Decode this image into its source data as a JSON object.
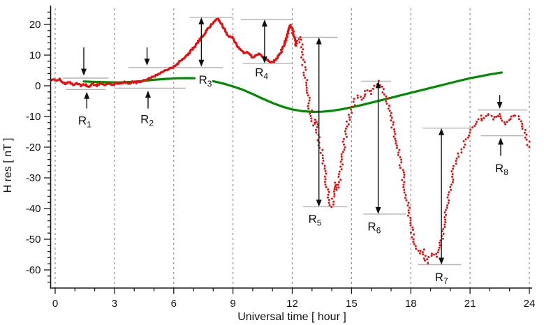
{
  "chart_data": {
    "type": "scatter",
    "title": "",
    "xlabel": "Universal time  [ hour ]",
    "ylabel": "H res  [ nT ]",
    "xlim": [
      -0.32,
      24.15
    ],
    "ylim": [
      -66,
      26
    ],
    "x_ticks": [
      0,
      3,
      6,
      9,
      12,
      15,
      18,
      21,
      24
    ],
    "y_ticks": [
      20,
      10,
      0,
      -10,
      -20,
      -30,
      -40,
      -50,
      -60
    ],
    "x_minor_step": 1,
    "y_minor_step": 2,
    "grid": "vertical dashed lines at major x ticks",
    "legend": "none",
    "colors": {
      "observed": "#ec0c0c",
      "baseline": "#008c00",
      "reference_line": "#b4b4b4",
      "arrow": "#101010",
      "gridline": "#8f8f8f"
    },
    "series": [
      {
        "name": "observed-H-residual",
        "style": "scatter-dots",
        "color": "#ec0c0c",
        "dense_until": 12.15,
        "points": [
          [
            -0.2,
            2.0
          ],
          [
            0.0,
            1.8
          ],
          [
            0.2,
            2.1
          ],
          [
            0.35,
            1.2
          ],
          [
            0.5,
            0.6
          ],
          [
            0.7,
            1.2
          ],
          [
            0.9,
            0.4
          ],
          [
            1.1,
            1.0
          ],
          [
            1.3,
            -0.1
          ],
          [
            1.5,
            0.5
          ],
          [
            1.7,
            -0.3
          ],
          [
            1.9,
            0.6
          ],
          [
            2.1,
            0.1
          ],
          [
            2.3,
            0.9
          ],
          [
            2.5,
            0.3
          ],
          [
            2.7,
            0.8
          ],
          [
            2.9,
            0.4
          ],
          [
            3.1,
            1.0
          ],
          [
            3.3,
            0.6
          ],
          [
            3.5,
            1.1
          ],
          [
            3.7,
            0.8
          ],
          [
            3.9,
            1.2
          ],
          [
            4.1,
            1.0
          ],
          [
            4.3,
            1.4
          ],
          [
            4.5,
            1.8
          ],
          [
            4.7,
            2.2
          ],
          [
            4.9,
            2.8
          ],
          [
            5.1,
            3.4
          ],
          [
            5.3,
            4.0
          ],
          [
            5.5,
            4.6
          ],
          [
            5.7,
            5.2
          ],
          [
            5.9,
            5.8
          ],
          [
            6.1,
            6.9
          ],
          [
            6.3,
            7.8
          ],
          [
            6.5,
            9.0
          ],
          [
            6.7,
            10.2
          ],
          [
            6.9,
            11.6
          ],
          [
            7.1,
            13.2
          ],
          [
            7.3,
            14.8
          ],
          [
            7.5,
            16.4
          ],
          [
            7.7,
            18.2
          ],
          [
            7.9,
            20.0
          ],
          [
            8.1,
            21.4
          ],
          [
            8.2,
            21.9
          ],
          [
            8.35,
            21.2
          ],
          [
            8.5,
            19.3
          ],
          [
            8.65,
            17.2
          ],
          [
            8.8,
            16.2
          ],
          [
            8.95,
            15.8
          ],
          [
            9.1,
            14.3
          ],
          [
            9.25,
            12.8
          ],
          [
            9.4,
            11.6
          ],
          [
            9.55,
            10.6
          ],
          [
            9.7,
            10.9
          ],
          [
            9.85,
            10.0
          ],
          [
            10.0,
            9.2
          ],
          [
            10.15,
            9.8
          ],
          [
            10.3,
            10.4
          ],
          [
            10.45,
            9.6
          ],
          [
            10.6,
            8.9
          ],
          [
            10.75,
            8.3
          ],
          [
            10.9,
            7.6
          ],
          [
            11.05,
            7.9
          ],
          [
            11.2,
            8.8
          ],
          [
            11.35,
            10.0
          ],
          [
            11.5,
            12.0
          ],
          [
            11.65,
            14.5
          ],
          [
            11.8,
            17.5
          ],
          [
            11.9,
            19.8
          ],
          [
            12.0,
            18.5
          ],
          [
            12.1,
            15.5
          ],
          [
            12.2,
            13.0
          ],
          [
            12.3,
            14.5
          ],
          [
            12.4,
            15.8
          ],
          [
            12.5,
            11.0
          ],
          [
            12.6,
            6.0
          ],
          [
            12.7,
            1.0
          ],
          [
            12.8,
            -4.0
          ],
          [
            12.95,
            -9.0
          ],
          [
            13.1,
            -13.0
          ],
          [
            13.2,
            -11.0
          ],
          [
            13.3,
            -16.0
          ],
          [
            13.45,
            -21.0
          ],
          [
            13.6,
            -27.0
          ],
          [
            13.75,
            -33.0
          ],
          [
            13.9,
            -38.0
          ],
          [
            14.0,
            -39.5
          ],
          [
            14.1,
            -36.0
          ],
          [
            14.2,
            -31.5
          ],
          [
            14.3,
            -34.0
          ],
          [
            14.45,
            -28.0
          ],
          [
            14.6,
            -20.0
          ],
          [
            14.75,
            -14.0
          ],
          [
            14.9,
            -9.5
          ],
          [
            15.05,
            -7.0
          ],
          [
            15.2,
            -4.5
          ],
          [
            15.35,
            -3.0
          ],
          [
            15.5,
            -4.5
          ],
          [
            15.65,
            -2.5
          ],
          [
            15.8,
            -1.5
          ],
          [
            15.95,
            -2.5
          ],
          [
            16.1,
            -1.0
          ],
          [
            16.25,
            0.8
          ],
          [
            16.35,
            1.5
          ],
          [
            16.5,
            -0.5
          ],
          [
            16.65,
            -2.0
          ],
          [
            16.8,
            -5.0
          ],
          [
            16.95,
            -9.0
          ],
          [
            17.1,
            -13.5
          ],
          [
            17.25,
            -18.0
          ],
          [
            17.4,
            -22.5
          ],
          [
            17.55,
            -27.5
          ],
          [
            17.7,
            -33.0
          ],
          [
            17.85,
            -39.0
          ],
          [
            18.0,
            -45.5
          ],
          [
            18.15,
            -50.0
          ],
          [
            18.3,
            -53.0
          ],
          [
            18.45,
            -54.5
          ],
          [
            18.6,
            -53.5
          ],
          [
            18.7,
            -55.5
          ],
          [
            18.8,
            -57.5
          ],
          [
            18.95,
            -56.0
          ],
          [
            19.1,
            -54.5
          ],
          [
            19.25,
            -55.5
          ],
          [
            19.4,
            -53.5
          ],
          [
            19.55,
            -50.5
          ],
          [
            19.7,
            -46.0
          ],
          [
            19.85,
            -39.0
          ],
          [
            20.0,
            -33.0
          ],
          [
            20.15,
            -28.0
          ],
          [
            20.3,
            -24.5
          ],
          [
            20.5,
            -21.5
          ],
          [
            20.7,
            -19.0
          ],
          [
            20.9,
            -16.0
          ],
          [
            21.1,
            -13.5
          ],
          [
            21.3,
            -11.5
          ],
          [
            21.5,
            -10.0
          ],
          [
            21.65,
            -11.5
          ],
          [
            21.8,
            -9.8
          ],
          [
            22.0,
            -9.0
          ],
          [
            22.15,
            -10.8
          ],
          [
            22.3,
            -9.6
          ],
          [
            22.5,
            -9.2
          ],
          [
            22.65,
            -11.2
          ],
          [
            22.8,
            -12.6
          ],
          [
            22.95,
            -11.0
          ],
          [
            23.1,
            -10.2
          ],
          [
            23.3,
            -9.4
          ],
          [
            23.45,
            -10.0
          ],
          [
            23.6,
            -12.5
          ],
          [
            23.75,
            -14.5
          ],
          [
            23.9,
            -17.5
          ],
          [
            24.0,
            -20.0
          ]
        ]
      },
      {
        "name": "quiet-day-baseline",
        "style": "line",
        "color": "#008c00",
        "segments": [
          [
            [
              1.45,
              1.4
            ],
            [
              2.0,
              1.25
            ],
            [
              2.6,
              1.15
            ],
            [
              3.2,
              1.1
            ],
            [
              3.8,
              1.25
            ],
            [
              4.4,
              1.55
            ],
            [
              5.0,
              1.95
            ],
            [
              5.6,
              2.25
            ],
            [
              6.2,
              2.45
            ],
            [
              6.7,
              2.5
            ],
            [
              7.05,
              2.45
            ]
          ],
          [
            [
              8.0,
              1.5
            ],
            [
              8.5,
              0.75
            ],
            [
              9.0,
              -0.2
            ],
            [
              9.5,
              -1.3
            ],
            [
              10.0,
              -2.7
            ],
            [
              10.5,
              -4.2
            ],
            [
              11.0,
              -5.6
            ],
            [
              11.5,
              -6.8
            ],
            [
              12.0,
              -7.7
            ],
            [
              12.5,
              -8.25
            ],
            [
              13.0,
              -8.5
            ],
            [
              13.5,
              -8.45
            ],
            [
              14.0,
              -8.15
            ],
            [
              14.5,
              -7.65
            ],
            [
              15.0,
              -7.0
            ],
            [
              15.5,
              -6.3
            ],
            [
              16.0,
              -5.5
            ],
            [
              16.5,
              -4.7
            ],
            [
              17.0,
              -3.9
            ],
            [
              17.5,
              -3.1
            ],
            [
              18.0,
              -2.3
            ],
            [
              18.5,
              -1.5
            ],
            [
              19.0,
              -0.7
            ],
            [
              19.5,
              0.1
            ],
            [
              20.0,
              0.9
            ],
            [
              20.5,
              1.7
            ],
            [
              21.0,
              2.45
            ],
            [
              21.5,
              3.1
            ],
            [
              22.0,
              3.7
            ],
            [
              22.6,
              4.35
            ]
          ]
        ]
      }
    ],
    "annotations": [
      {
        "id": "R1",
        "text": "R",
        "sub": "1",
        "label_x": 1.5,
        "label_y": -11.5,
        "ref_lines": [
          {
            "y": 2.5,
            "x1": 0.4,
            "x2": 2.7
          },
          {
            "y": -1.2,
            "x1": 0.55,
            "x2": 2.55
          }
        ],
        "arrows": [
          {
            "x": 1.45,
            "y_from": 12.5,
            "y_to": 3.3,
            "heads": "to"
          },
          {
            "x": 1.6,
            "y_from": -7.4,
            "y_to": -2.0,
            "heads": "to"
          }
        ]
      },
      {
        "id": "R2",
        "text": "R",
        "sub": "2",
        "label_x": 4.65,
        "label_y": -11.0,
        "ref_lines": [
          {
            "y": 5.9,
            "x1": 3.7,
            "x2": 8.5
          },
          {
            "y": -0.8,
            "x1": 3.05,
            "x2": 6.6
          }
        ],
        "arrows": [
          {
            "x": 4.65,
            "y_from": 12.5,
            "y_to": 6.6,
            "heads": "to"
          },
          {
            "x": 4.7,
            "y_from": -7.4,
            "y_to": -1.6,
            "heads": "to"
          }
        ]
      },
      {
        "id": "R3",
        "text": "R",
        "sub": "3",
        "label_x": 7.6,
        "label_y": 1.8,
        "ref_lines": [
          {
            "y": 22.3,
            "x1": 6.8,
            "x2": 9.0
          }
        ],
        "arrows": [
          {
            "x": 7.4,
            "y_from": 22.3,
            "y_to": 6.2,
            "heads": "both"
          }
        ]
      },
      {
        "id": "R4",
        "text": "R",
        "sub": "4",
        "label_x": 10.45,
        "label_y": 4.2,
        "ref_lines": [
          {
            "y": 21.6,
            "x1": 9.4,
            "x2": 12.05
          },
          {
            "y": 7.3,
            "x1": 9.5,
            "x2": 12.0
          }
        ],
        "arrows": [
          {
            "x": 10.6,
            "y_from": 21.6,
            "y_to": 7.3,
            "heads": "both"
          }
        ]
      },
      {
        "id": "R5",
        "text": "R",
        "sub": "5",
        "label_x": 13.15,
        "label_y": -43.5,
        "ref_lines": [
          {
            "y": 15.8,
            "x1": 12.15,
            "x2": 14.3
          },
          {
            "y": -39.4,
            "x1": 12.55,
            "x2": 14.8
          }
        ],
        "arrows": [
          {
            "x": 13.35,
            "y_from": 15.8,
            "y_to": -39.4,
            "heads": "both"
          }
        ]
      },
      {
        "id": "R6",
        "text": "R",
        "sub": "6",
        "label_x": 16.15,
        "label_y": -46.0,
        "ref_lines": [
          {
            "y": 1.5,
            "x1": 15.5,
            "x2": 17.0
          },
          {
            "y": -41.8,
            "x1": 15.6,
            "x2": 17.75
          }
        ],
        "arrows": [
          {
            "x": 16.35,
            "y_from": 1.5,
            "y_to": -41.8,
            "heads": "both"
          }
        ]
      },
      {
        "id": "R7",
        "text": "R",
        "sub": "7",
        "label_x": 19.55,
        "label_y": -62.5,
        "ref_lines": [
          {
            "y": -13.8,
            "x1": 18.6,
            "x2": 21.0
          },
          {
            "y": -58.3,
            "x1": 18.35,
            "x2": 20.55
          }
        ],
        "arrows": [
          {
            "x": 19.55,
            "y_from": -13.8,
            "y_to": -58.3,
            "heads": "both"
          }
        ]
      },
      {
        "id": "R8",
        "text": "R",
        "sub": "8",
        "label_x": 22.6,
        "label_y": -27.0,
        "ref_lines": [
          {
            "y": -7.9,
            "x1": 21.4,
            "x2": 23.9
          },
          {
            "y": -16.3,
            "x1": 21.55,
            "x2": 23.7
          }
        ],
        "arrows": [
          {
            "x": 22.5,
            "y_from": -3.0,
            "y_to": -7.5,
            "heads": "to"
          },
          {
            "x": 22.55,
            "y_from": -22.8,
            "y_to": -16.9,
            "heads": "to"
          }
        ]
      }
    ]
  }
}
